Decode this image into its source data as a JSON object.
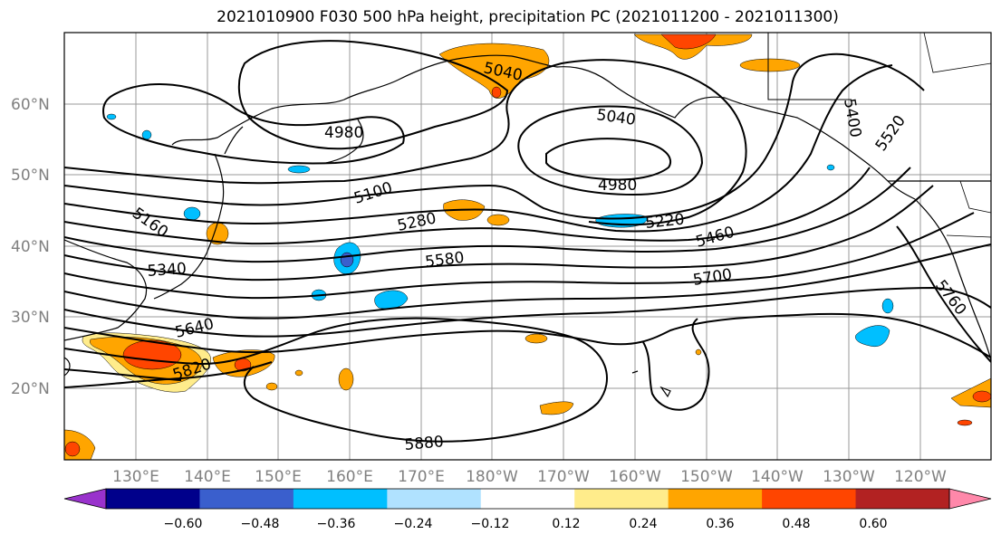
{
  "title": "2021010900 F030 500 hPa height, precipitation PC (2021011200 - 2021011300)",
  "lat_labels": [
    "60°N",
    "50°N",
    "40°N",
    "30°N",
    "20°N"
  ],
  "lon_labels": [
    "130°E",
    "140°E",
    "150°E",
    "160°E",
    "170°E",
    "180°W",
    "170°W",
    "160°W",
    "150°W",
    "140°W",
    "130°W",
    "120°W"
  ],
  "contour_labels": [
    "5040",
    "4980",
    "5040",
    "4980",
    "5400",
    "5520",
    "5100",
    "5160",
    "5280",
    "5220",
    "5460",
    "5340",
    "5580",
    "5700",
    "5760",
    "5640",
    "5820",
    "5880"
  ],
  "colorbar": {
    "ticks": [
      "−0.60",
      "−0.48",
      "−0.36",
      "−0.24",
      "−0.12",
      "0.12",
      "0.24",
      "0.36",
      "0.48",
      "0.60"
    ],
    "colors": [
      "#9932cc",
      "#00008b",
      "#3a5fcd",
      "#00bfff",
      "#b0e2ff",
      "#ffffff",
      "#ffec8b",
      "#ffa500",
      "#ff4500",
      "#b22222",
      "#ff88aa"
    ]
  },
  "colors": {
    "pos_light": "#ffec8b",
    "pos_mid": "#ffa500",
    "pos_high": "#ff4500",
    "neg_light": "#b0e2ff",
    "neg_mid": "#00bfff",
    "neg_high": "#3a5fcd"
  }
}
